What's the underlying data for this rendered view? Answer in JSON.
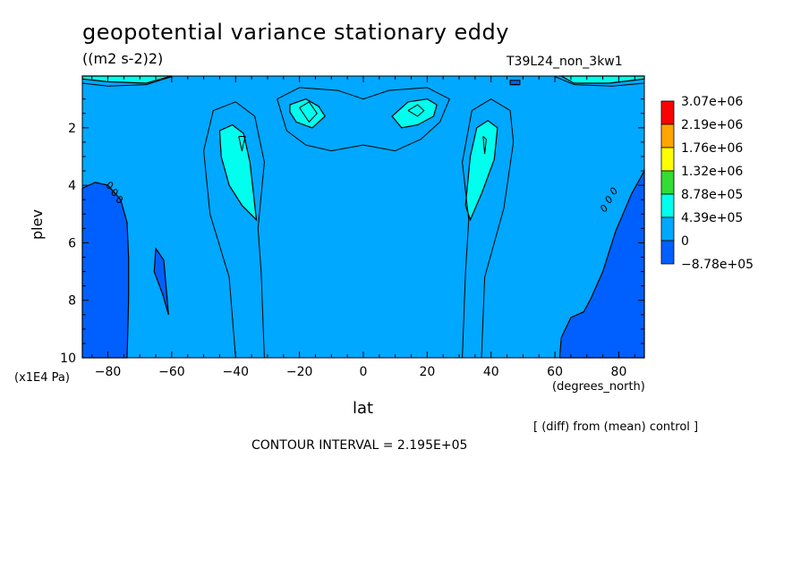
{
  "title": "geopotential variance stationary eddy",
  "units": "((m2 s-2)2)",
  "run": "T39L24_non_3kw1",
  "xlabel": "lat",
  "xunits": "(degrees_north)",
  "ylabel": "plev",
  "yunits": "(x1E4 Pa)",
  "diff_note": "[ (diff) from (mean) control ]",
  "contour_interval": "CONTOUR INTERVAL = 2.195E+05",
  "chart_data": {
    "type": "heatmap",
    "subtype": "filled-contour",
    "title": "geopotential variance stationary eddy",
    "units": "((m2 s-2)2)",
    "xlabel": "lat",
    "ylabel": "plev",
    "xlim": [
      -88,
      88
    ],
    "ylim": [
      0.2,
      10
    ],
    "y_inverted": true,
    "xticks": [
      -80,
      -60,
      -40,
      -20,
      0,
      20,
      40,
      60,
      80
    ],
    "yticks": [
      2,
      4,
      6,
      8,
      10
    ],
    "contour_interval": 219500,
    "colorbar": {
      "levels": [
        "3.07e+06",
        "2.19e+06",
        "1.76e+06",
        "1.32e+06",
        "8.78e+05",
        "4.39e+05",
        "0",
        "-8.78e+05"
      ],
      "colors": [
        "#ff0000",
        "#ffa500",
        "#ffff00",
        "#33dd33",
        "#00ffee",
        "#00a8ff",
        "#0060ff"
      ]
    },
    "contour_labels": [
      {
        "text": "0",
        "lat": -80,
        "plev": 4.1
      },
      {
        "text": "0",
        "lat": -78.5,
        "plev": 4.35
      },
      {
        "text": "0",
        "lat": -77,
        "plev": 4.6
      },
      {
        "text": "0",
        "lat": 76,
        "plev": 4.9
      },
      {
        "text": "0",
        "lat": 77.5,
        "plev": 4.6
      },
      {
        "text": "0",
        "lat": 79,
        "plev": 4.3
      }
    ],
    "regions": [
      {
        "value_class": "negative",
        "color": "#0060ff",
        "points": [
          [
            -88,
            4.1
          ],
          [
            -84,
            3.9
          ],
          [
            -80,
            4.0
          ],
          [
            -76,
            4.5
          ],
          [
            -74,
            5.3
          ],
          [
            -73.5,
            6.5
          ],
          [
            -73.5,
            8.0
          ],
          [
            -74,
            10
          ],
          [
            -88,
            10
          ]
        ]
      },
      {
        "value_class": "negative",
        "color": "#0060ff",
        "points": [
          [
            -65,
            6.2
          ],
          [
            -62.5,
            6.6
          ],
          [
            -61,
            8.5
          ],
          [
            -62.8,
            7.8
          ],
          [
            -65.5,
            7.0
          ]
        ]
      },
      {
        "value_class": "negative",
        "color": "#0060ff",
        "points": [
          [
            88,
            3.5
          ],
          [
            84,
            4.3
          ],
          [
            79,
            5.6
          ],
          [
            75,
            7.0
          ],
          [
            71,
            8.0
          ],
          [
            69,
            8.4
          ],
          [
            65,
            8.6
          ],
          [
            62,
            9.3
          ],
          [
            61.5,
            10
          ],
          [
            88,
            10
          ]
        ]
      },
      {
        "value_class": "negative",
        "color": "#0060ff",
        "points": [
          [
            46,
            0.35
          ],
          [
            49,
            0.35
          ],
          [
            49,
            0.5
          ],
          [
            46,
            0.5
          ]
        ]
      },
      {
        "value_class": "4.39e+05",
        "color": "#00ffee",
        "points": [
          [
            -23,
            1.2
          ],
          [
            -18,
            1.0
          ],
          [
            -14,
            1.25
          ],
          [
            -12,
            1.6
          ],
          [
            -16,
            2.0
          ],
          [
            -21,
            1.8
          ],
          [
            -23,
            1.45
          ]
        ]
      },
      {
        "value_class": "4.39e+05",
        "color": "#00ffee",
        "points": [
          [
            9,
            1.6
          ],
          [
            14,
            1.1
          ],
          [
            20,
            1.0
          ],
          [
            23,
            1.2
          ],
          [
            22,
            1.6
          ],
          [
            17,
            1.9
          ],
          [
            12,
            2.0
          ]
        ]
      },
      {
        "value_class": "4.39e+05",
        "color": "#00ffee",
        "points": [
          [
            -45,
            2.1
          ],
          [
            -41,
            1.9
          ],
          [
            -37.5,
            2.2
          ],
          [
            -35.5,
            3.2
          ],
          [
            -33.5,
            5.2
          ],
          [
            -38,
            4.7
          ],
          [
            -42,
            4.0
          ],
          [
            -44.5,
            3.0
          ]
        ]
      },
      {
        "value_class": "4.39e+05",
        "color": "#00ffee",
        "points": [
          [
            32,
            4.7
          ],
          [
            33.5,
            3.0
          ],
          [
            35.5,
            2.0
          ],
          [
            39,
            1.75
          ],
          [
            42,
            2.0
          ],
          [
            41,
            3.1
          ],
          [
            37,
            4.3
          ],
          [
            33.5,
            5.2
          ]
        ]
      },
      {
        "value_class": "high",
        "color": "#00ffee",
        "points": [
          [
            -88,
            0.2
          ],
          [
            -72,
            0.2
          ],
          [
            -60,
            0.2
          ],
          [
            -68,
            0.45
          ],
          [
            -80,
            0.4
          ],
          [
            -88,
            0.3
          ]
        ]
      },
      {
        "value_class": "high",
        "color": "#00ffee",
        "points": [
          [
            88,
            0.2
          ],
          [
            62,
            0.2
          ],
          [
            66,
            0.45
          ],
          [
            77,
            0.45
          ],
          [
            88,
            0.3
          ]
        ]
      }
    ]
  }
}
